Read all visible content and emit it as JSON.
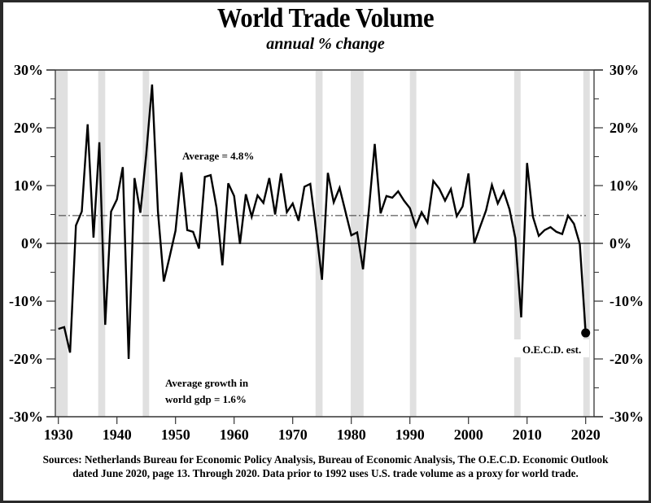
{
  "chart_data": {
    "type": "line",
    "title": "World Trade Volume",
    "subtitle": "annual % change",
    "xlabel": "",
    "ylabel": "",
    "xlim": [
      1930,
      2021
    ],
    "ylim": [
      -30,
      30
    ],
    "x_ticks": [
      1930,
      1940,
      1950,
      1960,
      1970,
      1980,
      1990,
      2000,
      2010,
      2020
    ],
    "x_tick_labels": [
      "1930",
      "1940",
      "1950",
      "1960",
      "1970",
      "1980",
      "1990",
      "2000",
      "2010",
      "2020"
    ],
    "y_ticks": [
      30,
      20,
      10,
      0,
      -10,
      -20,
      -30
    ],
    "y_tick_labels": [
      "30%",
      "20%",
      "10%",
      "0%",
      "-10%",
      "-20%",
      "-30%"
    ],
    "y_minor_ticks": [
      25,
      15,
      5,
      -5,
      -15,
      -25
    ],
    "grid": false,
    "series": [
      {
        "name": "World trade volume, annual % change",
        "color": "#000000",
        "x": [
          1930,
          1931,
          1932,
          1933,
          1934,
          1935,
          1936,
          1937,
          1938,
          1939,
          1940,
          1941,
          1942,
          1943,
          1944,
          1945,
          1946,
          1947,
          1948,
          1949,
          1950,
          1951,
          1952,
          1953,
          1954,
          1955,
          1956,
          1957,
          1958,
          1959,
          1960,
          1961,
          1962,
          1963,
          1964,
          1965,
          1966,
          1967,
          1968,
          1969,
          1970,
          1971,
          1972,
          1973,
          1974,
          1975,
          1976,
          1977,
          1978,
          1979,
          1980,
          1981,
          1982,
          1983,
          1984,
          1985,
          1986,
          1987,
          1988,
          1989,
          1990,
          1991,
          1992,
          1993,
          1994,
          1995,
          1996,
          1997,
          1998,
          1999,
          2000,
          2001,
          2002,
          2003,
          2004,
          2005,
          2006,
          2007,
          2008,
          2009,
          2010,
          2011,
          2012,
          2013,
          2014,
          2015,
          2016,
          2017,
          2018,
          2019,
          2020
        ],
        "values": [
          -14.8,
          -14.5,
          -18.9,
          3.1,
          5.5,
          20.6,
          1.0,
          17.5,
          -14.1,
          5.5,
          7.6,
          13.2,
          -20.0,
          11.3,
          5.3,
          15.4,
          27.5,
          5.5,
          -6.6,
          -2.3,
          2.2,
          12.3,
          2.3,
          2.0,
          -0.9,
          11.5,
          11.8,
          6.2,
          -3.8,
          10.4,
          8.2,
          -0.1,
          8.5,
          4.6,
          8.3,
          7.0,
          11.3,
          5.0,
          12.1,
          5.4,
          6.9,
          3.9,
          9.8,
          10.3,
          2.3,
          -6.3,
          12.2,
          7.1,
          9.6,
          5.5,
          1.4,
          1.9,
          -4.5,
          5.8,
          17.2,
          5.2,
          8.2,
          7.9,
          9.0,
          7.4,
          6.1,
          2.9,
          5.4,
          3.6,
          10.8,
          9.5,
          7.4,
          9.4,
          4.7,
          6.4,
          12.1,
          0.0,
          2.9,
          5.7,
          10.1,
          6.9,
          9.0,
          5.9,
          0.9,
          -12.8,
          13.9,
          4.6,
          1.3,
          2.3,
          2.8,
          2.0,
          1.6,
          4.8,
          3.4,
          -0.1,
          -15.5
        ]
      }
    ],
    "average_line": {
      "value": 4.8,
      "label": "Average = 4.8%",
      "style": "dash-dot"
    },
    "zero_line": 0,
    "endpoint_marker": {
      "x": 2020,
      "value": -15.5,
      "label": "O.E.C.D. est."
    },
    "recession_bands": [
      {
        "start": 1929.6,
        "end": 1931.6
      },
      {
        "start": 1936.8,
        "end": 1938.0
      },
      {
        "start": 1944.4,
        "end": 1945.5
      },
      {
        "start": 1973.9,
        "end": 1975.1
      },
      {
        "start": 1979.9,
        "end": 1982.1
      },
      {
        "start": 1990.0,
        "end": 1991.1
      },
      {
        "start": 2007.8,
        "end": 2008.9
      },
      {
        "start": 2019.6,
        "end": 2020.7
      }
    ],
    "band_color": "#e0e0e0",
    "annotations": [
      {
        "line1": "Average growth in",
        "line2": "world gdp = 1.6%"
      }
    ]
  },
  "footer": {
    "sources_line1": "Sources:  Netherlands Bureau for Economic Policy Analysis, Bureau of Economic Analysis, The O.E.C.D. Economic Outlook",
    "sources_line2": "dated June 2020, page 13. Through 2020.  Data prior to 1992 uses U.S. trade volume as a proxy for world trade."
  }
}
